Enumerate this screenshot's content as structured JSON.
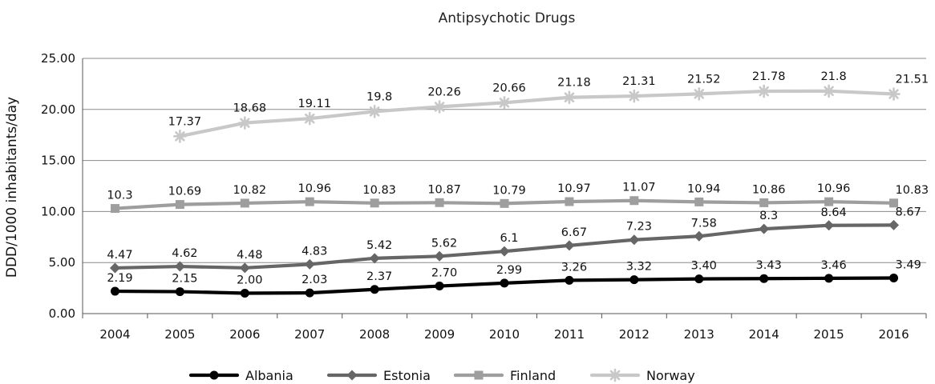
{
  "chart_data": {
    "type": "line",
    "title": "Antipsychotic Drugs",
    "ylabel": "DDD/1000 inhabitants/day",
    "xlabel": "",
    "ylim": [
      0,
      25
    ],
    "yticks": [
      "0.00",
      "5.00",
      "10.00",
      "15.00",
      "20.00",
      "25.00"
    ],
    "x": [
      "2004",
      "2005",
      "2006",
      "2007",
      "2008",
      "2009",
      "2010",
      "2011",
      "2012",
      "2013",
      "2014",
      "2015",
      "2016"
    ],
    "legend_position": "bottom",
    "grid": "horizontal",
    "series": [
      {
        "name": "Albania",
        "color": "#000000",
        "marker": "circle",
        "values": [
          2.19,
          2.15,
          2.0,
          2.03,
          2.37,
          2.7,
          2.99,
          3.26,
          3.32,
          3.4,
          3.43,
          3.46,
          3.49
        ],
        "labels": [
          "2.19",
          "2.15",
          "2.00",
          "2.03",
          "2.37",
          "2.70",
          "2.99",
          "3.26",
          "3.32",
          "3.40",
          "3.43",
          "3.46",
          "3.49"
        ]
      },
      {
        "name": "Estonia",
        "color": "#666666",
        "marker": "diamond",
        "values": [
          4.47,
          4.62,
          4.48,
          4.83,
          5.42,
          5.62,
          6.1,
          6.67,
          7.23,
          7.58,
          8.3,
          8.64,
          8.67
        ],
        "labels": [
          "4.47",
          "4.62",
          "4.48",
          "4.83",
          "5.42",
          "5.62",
          "6.1",
          "6.67",
          "7.23",
          "7.58",
          "8.3",
          "8.64",
          "8.67"
        ]
      },
      {
        "name": "Finland",
        "color": "#9e9e9e",
        "marker": "square",
        "values": [
          10.3,
          10.69,
          10.82,
          10.96,
          10.83,
          10.87,
          10.79,
          10.97,
          11.07,
          10.94,
          10.86,
          10.96,
          10.83
        ],
        "labels": [
          "10.3",
          "10.69",
          "10.82",
          "10.96",
          "10.83",
          "10.87",
          "10.79",
          "10.97",
          "11.07",
          "10.94",
          "10.86",
          "10.96",
          "10.83"
        ]
      },
      {
        "name": "Norway",
        "color": "#c8c8c8",
        "marker": "star",
        "values": [
          null,
          17.37,
          18.68,
          19.11,
          19.8,
          20.26,
          20.66,
          21.18,
          21.31,
          21.52,
          21.78,
          21.8,
          21.51
        ],
        "labels": [
          null,
          "17.37",
          "18.68",
          "19.11",
          "19.8",
          "20.26",
          "20.66",
          "21.18",
          "21.31",
          "21.52",
          "21.78",
          "21.8",
          "21.51"
        ]
      }
    ]
  }
}
